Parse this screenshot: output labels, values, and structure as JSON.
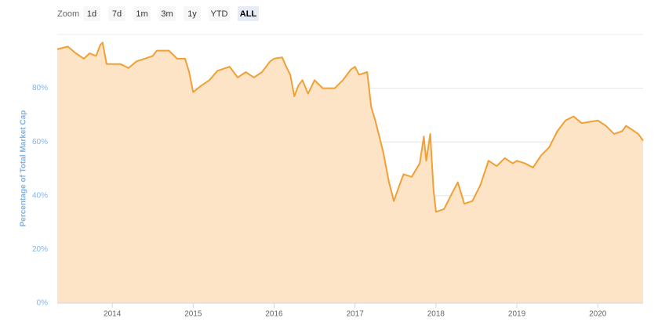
{
  "chart_data": {
    "type": "area",
    "zoom_label": "Zoom",
    "zoom_buttons": [
      "1d",
      "7d",
      "1m",
      "3m",
      "1y",
      "YTD",
      "ALL"
    ],
    "selected_button": "ALL",
    "y_label": "Percentage of Total Market Cap",
    "line_color": "#f0a035",
    "fill_color": "#fde4c6",
    "grid": true,
    "xlim": [
      2013.32,
      2020.56
    ],
    "xticks": [
      2014,
      2015,
      2016,
      2017,
      2018,
      2019,
      2020
    ],
    "ylim": [
      0,
      100
    ],
    "yticks": [
      {
        "value": 0,
        "label": "0%"
      },
      {
        "value": 20,
        "label": "20%"
      },
      {
        "value": 40,
        "label": "40%"
      },
      {
        "value": 60,
        "label": "60%"
      },
      {
        "value": 80,
        "label": "80%"
      }
    ],
    "x": [
      2013.32,
      2013.45,
      2013.55,
      2013.65,
      2013.72,
      2013.8,
      2013.85,
      2013.88,
      2013.93,
      2014.0,
      2014.1,
      2014.2,
      2014.3,
      2014.4,
      2014.5,
      2014.55,
      2014.7,
      2014.8,
      2014.9,
      2014.95,
      2015.0,
      2015.1,
      2015.2,
      2015.3,
      2015.45,
      2015.55,
      2015.65,
      2015.75,
      2015.85,
      2015.95,
      2016.0,
      2016.1,
      2016.15,
      2016.2,
      2016.25,
      2016.3,
      2016.35,
      2016.42,
      2016.5,
      2016.6,
      2016.75,
      2016.85,
      2016.95,
      2017.0,
      2017.05,
      2017.15,
      2017.2,
      2017.25,
      2017.35,
      2017.42,
      2017.48,
      2017.55,
      2017.6,
      2017.7,
      2017.8,
      2017.85,
      2017.88,
      2017.93,
      2017.97,
      2018.0,
      2018.1,
      2018.2,
      2018.27,
      2018.35,
      2018.45,
      2018.55,
      2018.65,
      2018.75,
      2018.85,
      2018.95,
      2019.0,
      2019.1,
      2019.2,
      2019.3,
      2019.4,
      2019.5,
      2019.6,
      2019.7,
      2019.8,
      2019.9,
      2020.0,
      2020.1,
      2020.2,
      2020.3,
      2020.35,
      2020.4,
      2020.5,
      2020.56
    ],
    "values": [
      94.5,
      95.5,
      93,
      91,
      93,
      92,
      96,
      97,
      89,
      89,
      89,
      87.5,
      90,
      91,
      92,
      94,
      94,
      91,
      91,
      86,
      78.5,
      81,
      83,
      86.5,
      88,
      84,
      86,
      84,
      86,
      90,
      91,
      91.5,
      88,
      85,
      77,
      81,
      83,
      78,
      83,
      80,
      80,
      83,
      87,
      88,
      85,
      86,
      73,
      68,
      56,
      45,
      38,
      44,
      48,
      47,
      52,
      62,
      53,
      63,
      42,
      34,
      35,
      41,
      45,
      37,
      38,
      44,
      53,
      51,
      54,
      52,
      53,
      52,
      50.5,
      55,
      58,
      64,
      68,
      69.5,
      67,
      67.5,
      68,
      66,
      63,
      64,
      66,
      65,
      63,
      60.5
    ]
  }
}
